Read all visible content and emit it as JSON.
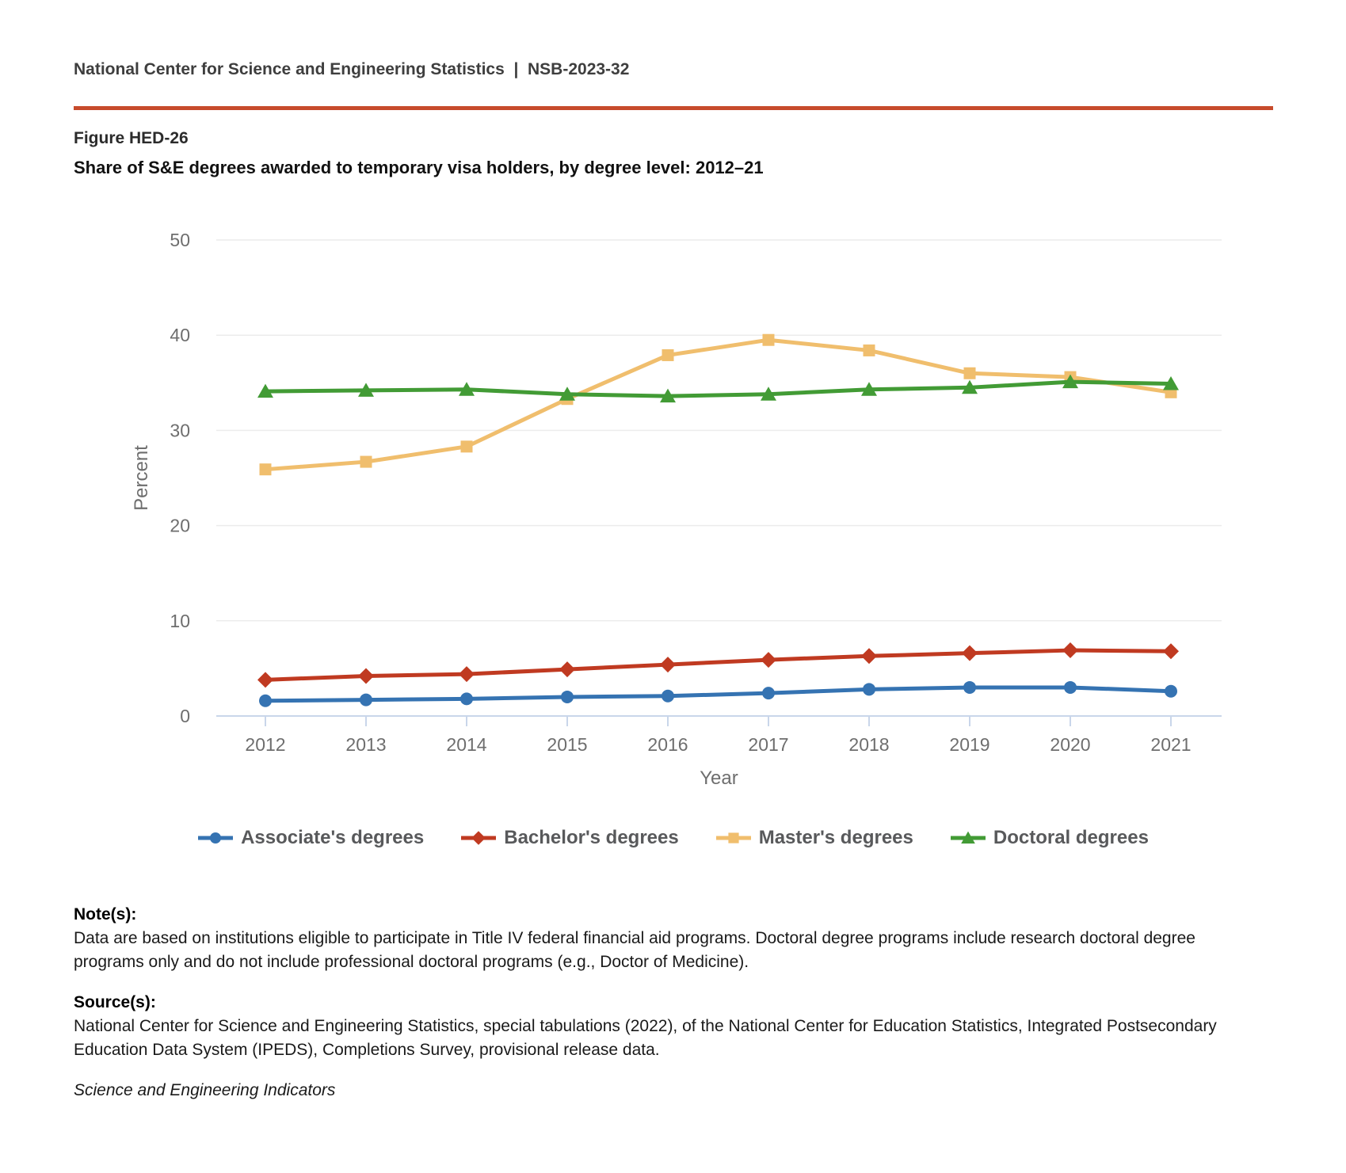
{
  "page": {
    "header": "National Center for Science and Engineering Statistics  |  NSB-2023-32",
    "figure_label": "Figure HED-26",
    "title": "Share of S&E degrees awarded to temporary visa holders, by degree level: 2012–21"
  },
  "chart_data": {
    "type": "line",
    "x": [
      2012,
      2013,
      2014,
      2015,
      2016,
      2017,
      2018,
      2019,
      2020,
      2021
    ],
    "series": [
      {
        "name": "Associate's degrees",
        "marker": "circle",
        "color": "#3573b2",
        "values": [
          1.6,
          1.7,
          1.8,
          2.0,
          2.1,
          2.4,
          2.8,
          3.0,
          3.0,
          2.6
        ]
      },
      {
        "name": "Bachelor's degrees",
        "marker": "diamond",
        "color": "#c03a21",
        "values": [
          3.8,
          4.2,
          4.4,
          4.9,
          5.4,
          5.9,
          6.3,
          6.6,
          6.9,
          6.8
        ]
      },
      {
        "name": "Master's degrees",
        "marker": "square",
        "color": "#f0be6d",
        "values": [
          25.9,
          26.7,
          28.3,
          33.3,
          37.9,
          39.5,
          38.4,
          36.0,
          35.6,
          34.0
        ]
      },
      {
        "name": "Doctoral degrees",
        "marker": "triangle",
        "color": "#429b35",
        "values": [
          34.1,
          34.2,
          34.3,
          33.8,
          33.6,
          33.8,
          34.3,
          34.5,
          35.1,
          34.9
        ]
      }
    ],
    "xlabel": "Year",
    "ylabel": "Percent",
    "ylim": [
      0,
      50
    ],
    "yticks": [
      0,
      10,
      20,
      30,
      40,
      50
    ],
    "grid": true,
    "legend_position": "bottom"
  },
  "notes": {
    "notes_label": "Note(s):",
    "notes_text": "Data are based on institutions eligible to participate in Title IV federal financial aid programs. Doctoral degree programs include research doctoral degree programs only and do not include professional doctoral programs (e.g., Doctor of Medicine).",
    "sources_label": "Source(s):",
    "sources_text": "National Center for Science and Engineering Statistics, special tabulations (2022), of the National Center for Education Statistics, Integrated Postsecondary Education Data System (IPEDS), Completions Survey, provisional release data.",
    "attribution": "Science and Engineering Indicators"
  },
  "colors": {
    "rule": "#c74b2c",
    "axis_labels": "#6e6e6e",
    "gridline": "#ececec",
    "axis_line": "#c9d6ea",
    "legend_text": "#58595b"
  }
}
